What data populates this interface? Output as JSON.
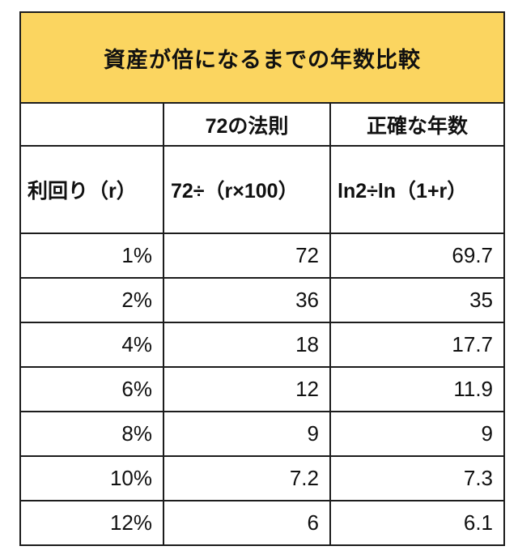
{
  "title": "資産が倍になるまでの年数比較",
  "colors": {
    "banner_yellow": "#fbd560",
    "border": "#1c1c1c",
    "text": "#111111",
    "background": "#ffffff"
  },
  "table": {
    "header_row1": {
      "col1": "",
      "col2": "72の法則",
      "col3": "正確な年数"
    },
    "header_row2": {
      "col1": "利回り（r）",
      "col2": "72÷（r×100）",
      "col3": "ln2÷ln（1+r）"
    },
    "rows": [
      {
        "rate": "1%",
        "rule72": "72",
        "exact": "69.7"
      },
      {
        "rate": "2%",
        "rule72": "36",
        "exact": "35"
      },
      {
        "rate": "4%",
        "rule72": "18",
        "exact": "17.7"
      },
      {
        "rate": "6%",
        "rule72": "12",
        "exact": "11.9"
      },
      {
        "rate": "8%",
        "rule72": "9",
        "exact": "9"
      },
      {
        "rate": "10%",
        "rule72": "7.2",
        "exact": "7.3"
      },
      {
        "rate": "12%",
        "rule72": "6",
        "exact": "6.1"
      }
    ]
  },
  "chart_data": {
    "type": "table",
    "title": "資産が倍になるまでの年数比較",
    "row_label_header": "利回り（r）",
    "column_formulas": [
      "72÷（r×100）",
      "ln2÷ln（1+r）"
    ],
    "categories": [
      "1%",
      "2%",
      "4%",
      "6%",
      "8%",
      "10%",
      "12%"
    ],
    "series": [
      {
        "name": "72の法則",
        "values": [
          72,
          36,
          18,
          12,
          9,
          7.2,
          6
        ]
      },
      {
        "name": "正確な年数",
        "values": [
          69.7,
          35,
          17.7,
          11.9,
          9,
          7.3,
          6.1
        ]
      }
    ]
  }
}
